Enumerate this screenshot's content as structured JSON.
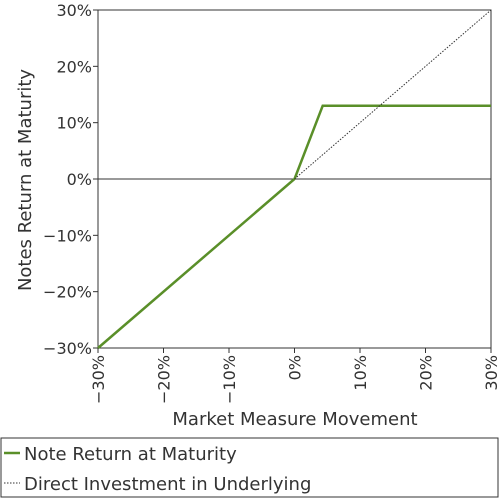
{
  "chart_data": {
    "type": "line",
    "xlabel": "Market Measure Movement",
    "ylabel": "Notes Return at Maturity",
    "xlim": [
      -30,
      30
    ],
    "ylim": [
      -30,
      30
    ],
    "x_ticks": [
      -30,
      -20,
      -10,
      0,
      10,
      20,
      30
    ],
    "y_ticks": [
      -30,
      -20,
      -10,
      0,
      10,
      20,
      30
    ],
    "x_tick_labels": [
      "−30%",
      "−20%",
      "−10%",
      "0%",
      "10%",
      "20%",
      "30%"
    ],
    "y_tick_labels": [
      "−30%",
      "−20%",
      "−10%",
      "0%",
      "10%",
      "20%",
      "30%"
    ],
    "grid": false,
    "zero_line": true,
    "legend_position": "bottom",
    "series": [
      {
        "name": "Note Return at Maturity",
        "color": "#5a8f29",
        "style": "solid",
        "points": [
          [
            -30,
            -30
          ],
          [
            0,
            0
          ],
          [
            4.3,
            13
          ],
          [
            30,
            13
          ]
        ]
      },
      {
        "name": "Direct Investment in Underlying",
        "color": "#333333",
        "style": "dotted",
        "points": [
          [
            0,
            0
          ],
          [
            30,
            30
          ]
        ]
      }
    ]
  }
}
